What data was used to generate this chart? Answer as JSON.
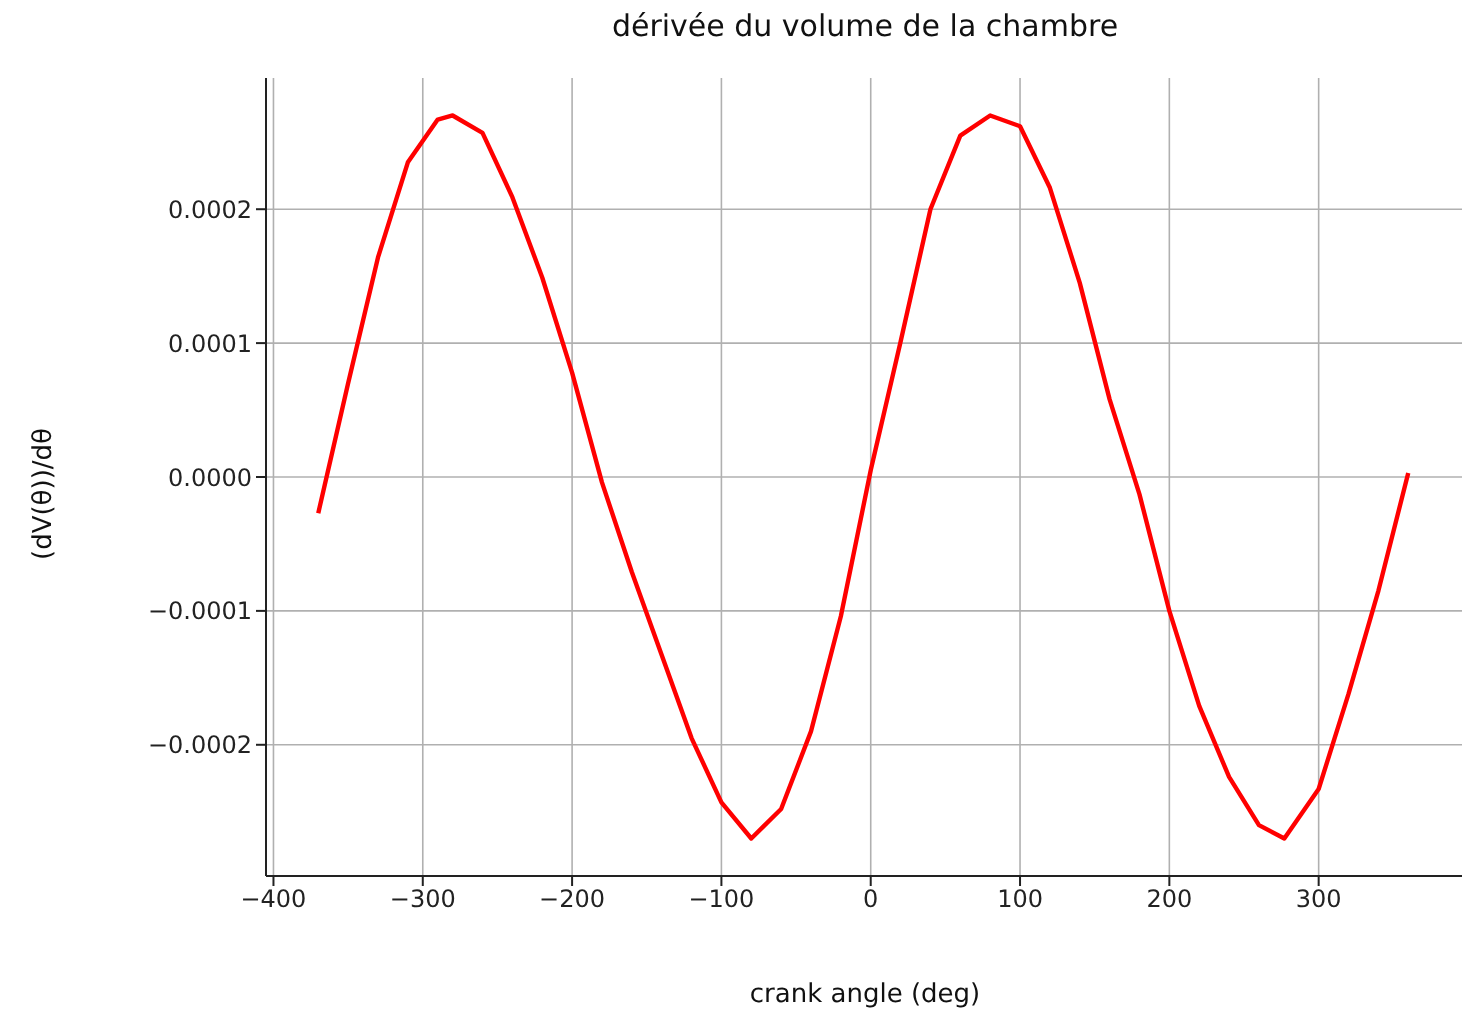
{
  "chart_data": {
    "type": "line",
    "title": "dérivée du volume de la chambre",
    "xlabel": "crank angle (deg)",
    "ylabel": "(dV(θ))/dθ",
    "x": [
      -370,
      -350,
      -330,
      -310,
      -290,
      -280,
      -260,
      -240,
      -220,
      -200,
      -180,
      -160,
      -140,
      -120,
      -100,
      -80,
      -60,
      -40,
      -20,
      0,
      20,
      40,
      60,
      80,
      100,
      120,
      140,
      160,
      180,
      200,
      220,
      240,
      260,
      277,
      300,
      320,
      340,
      360
    ],
    "series": [
      {
        "color": "#ff0000",
        "values": [
          -2.7e-05,
          7e-05,
          0.000164,
          0.000235,
          0.000267,
          0.00027,
          0.000257,
          0.000209,
          0.000149,
          7.8e-05,
          -4e-06,
          -7.1e-05,
          -0.000133,
          -0.000195,
          -0.000243,
          -0.00027,
          -0.000248,
          -0.00019,
          -0.000104,
          5e-06,
          0.000101,
          0.0002,
          0.000255,
          0.00027,
          0.000262,
          0.000216,
          0.000145,
          5.8e-05,
          -1.3e-05,
          -0.0001,
          -0.000171,
          -0.000224,
          -0.00026,
          -0.00027,
          -0.000233,
          -0.000162,
          -8.5e-05,
          3e-06
        ]
      }
    ],
    "xlim": [
      -405,
      396
    ],
    "xticks": [
      {
        "value": -400,
        "label": "−400"
      },
      {
        "value": -300,
        "label": "−300"
      },
      {
        "value": -200,
        "label": "−200"
      },
      {
        "value": -100,
        "label": "−100"
      },
      0,
      100,
      200,
      300
    ],
    "ylim": [
      -0.000298,
      0.000298
    ],
    "yticks": [
      {
        "value": -0.0002,
        "label": "−0.0002"
      },
      {
        "value": -0.0001,
        "label": "−0.0001"
      },
      {
        "value": 0,
        "label": "0.0000"
      },
      {
        "value": 0.0001,
        "label": "0.0001"
      },
      {
        "value": 0.0002,
        "label": "0.0002"
      }
    ],
    "grid": true,
    "line_style": "solid",
    "marker": "none"
  }
}
